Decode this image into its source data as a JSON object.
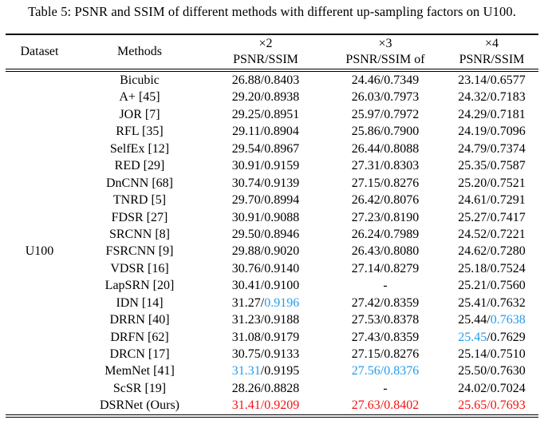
{
  "caption": "Table 5: PSNR and SSIM of different methods with different up-sampling factors on U100.",
  "colors": {
    "text": "#000000",
    "highlight_blue": "#219CEE",
    "highlight_red": "#F61111",
    "background": "#FFFFFF"
  },
  "chart_data": {
    "type": "table",
    "title": "Table 5: PSNR and SSIM of different methods with different up-sampling factors on U100."
  },
  "table": {
    "columns": {
      "dataset": "Dataset",
      "methods": "Methods",
      "factors": [
        {
          "factor": "×2",
          "metric": "PSNR/SSIM"
        },
        {
          "factor": "×3",
          "metric": "PSNR/SSIM of"
        },
        {
          "factor": "×4",
          "metric": "PSNR/SSIM"
        }
      ]
    },
    "dataset_label": "U100",
    "rows": [
      {
        "method": "Bicubic",
        "x2": "26.88/0.8403",
        "x3": "24.46/0.7349",
        "x4": "23.14/0.6577"
      },
      {
        "method": "A+ [45]",
        "x2": "29.20/0.8938",
        "x3": "26.03/0.7973",
        "x4": "24.32/0.7183"
      },
      {
        "method": "JOR [7]",
        "x2": "29.25/0.8951",
        "x3": "25.97/0.7972",
        "x4": "24.29/0.7181"
      },
      {
        "method": "RFL [35]",
        "x2": "29.11/0.8904",
        "x3": "25.86/0.7900",
        "x4": "24.19/0.7096"
      },
      {
        "method": "SelfEx [12]",
        "x2": "29.54/0.8967",
        "x3": "26.44/0.8088",
        "x4": "24.79/0.7374"
      },
      {
        "method": "RED [29]",
        "x2": "30.91/0.9159",
        "x3": "27.31/0.8303",
        "x4": "25.35/0.7587"
      },
      {
        "method": "DnCNN [68]",
        "x2": "30.74/0.9139",
        "x3": "27.15/0.8276",
        "x4": "25.20/0.7521"
      },
      {
        "method": "TNRD [5]",
        "x2": "29.70/0.8994",
        "x3": "26.42/0.8076",
        "x4": "24.61/0.7291"
      },
      {
        "method": "FDSR [27]",
        "x2": "30.91/0.9088",
        "x3": "27.23/0.8190",
        "x4": "25.27/0.7417"
      },
      {
        "method": "SRCNN [8]",
        "x2": "29.50/0.8946",
        "x3": "26.24/0.7989",
        "x4": "24.52/0.7221"
      },
      {
        "method": "FSRCNN [9]",
        "x2": "29.88/0.9020",
        "x3": "26.43/0.8080",
        "x4": "24.62/0.7280"
      },
      {
        "method": "VDSR [16]",
        "x2": "30.76/0.9140",
        "x3": "27.14/0.8279",
        "x4": "25.18/0.7524"
      },
      {
        "method": "LapSRN [20]",
        "x2": "30.41/0.9100",
        "x3": "-",
        "x4": "25.21/0.7560"
      },
      {
        "method": "IDN [14]",
        "x2": [
          {
            "t": "31.27/",
            "c": "black"
          },
          {
            "t": "0.9196",
            "c": "blue"
          }
        ],
        "x3": "27.42/0.8359",
        "x4": "25.41/0.7632"
      },
      {
        "method": "DRRN [40]",
        "x2": "31.23/0.9188",
        "x3": "27.53/0.8378",
        "x4": [
          {
            "t": "25.44/",
            "c": "black"
          },
          {
            "t": "0.7638",
            "c": "blue"
          }
        ]
      },
      {
        "method": "DRFN [62]",
        "x2": "31.08/0.9179",
        "x3": "27.43/0.8359",
        "x4": [
          {
            "t": "25.45",
            "c": "blue"
          },
          {
            "t": "/0.7629",
            "c": "black"
          }
        ]
      },
      {
        "method": "DRCN [17]",
        "x2": "30.75/0.9133",
        "x3": "27.15/0.8276",
        "x4": "25.14/0.7510"
      },
      {
        "method": "MemNet [41]",
        "x2": [
          {
            "t": "31.31",
            "c": "blue"
          },
          {
            "t": "/0.9195",
            "c": "black"
          }
        ],
        "x3": [
          {
            "t": "27.56/0.8376",
            "c": "blue"
          }
        ],
        "x4": "25.50/0.7630"
      },
      {
        "method": "ScSR [19]",
        "x2": "28.26/0.8828",
        "x3": "-",
        "x4": "24.02/0.7024"
      },
      {
        "method": "DSRNet (Ours)",
        "x2": [
          {
            "t": "31.41/0.9209",
            "c": "red"
          }
        ],
        "x3": [
          {
            "t": "27.63/0.8402",
            "c": "red"
          }
        ],
        "x4": [
          {
            "t": "25.65/0.7693",
            "c": "red"
          }
        ]
      }
    ]
  }
}
